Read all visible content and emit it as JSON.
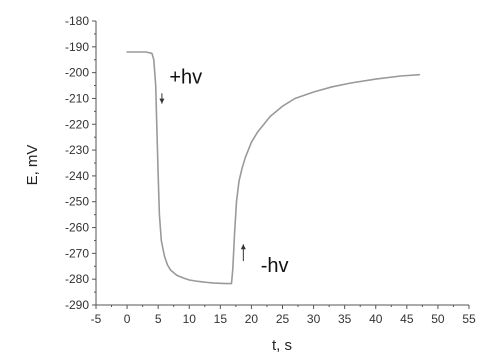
{
  "chart_data": {
    "type": "line",
    "xlabel": "t, s",
    "ylabel": "E, mV",
    "xlim": [
      -5,
      55
    ],
    "ylim": [
      -290,
      -180
    ],
    "xticks": [
      -5,
      0,
      5,
      10,
      15,
      20,
      25,
      30,
      35,
      40,
      45,
      50,
      55
    ],
    "yticks": [
      -180,
      -190,
      -200,
      -210,
      -220,
      -230,
      -240,
      -250,
      -260,
      -270,
      -280,
      -290
    ],
    "grid": false,
    "legend": "none",
    "line_color": "#9a9a9a",
    "series": [
      {
        "x": [
          0,
          1,
          2,
          3,
          4,
          4.3,
          4.6,
          4.8,
          5.0,
          5.2,
          5.5,
          6.0,
          6.5,
          7,
          8,
          9,
          10,
          11,
          12,
          13,
          14,
          15,
          16,
          16.8,
          17.0,
          17.3,
          17.6,
          18,
          18.5,
          19,
          20,
          21,
          22,
          23,
          24,
          25,
          27,
          30,
          33,
          36,
          40,
          44,
          47
        ],
        "y": [
          -192,
          -192,
          -192,
          -192,
          -192.5,
          -195,
          -205,
          -222,
          -240,
          -255,
          -265,
          -271,
          -274.5,
          -276.5,
          -278.5,
          -279.5,
          -280.3,
          -280.7,
          -281,
          -281.3,
          -281.5,
          -281.6,
          -281.7,
          -281.7,
          -276,
          -262,
          -250,
          -242,
          -237,
          -233,
          -227,
          -223,
          -220,
          -217,
          -215,
          -213,
          -210,
          -207.5,
          -205.5,
          -204,
          -202.5,
          -201.3,
          -200.8
        ]
      }
    ],
    "annotations": [
      {
        "text": "+hv",
        "x": 6.8,
        "y": -201.5,
        "arrow_direction": "down",
        "arrow_x": 5.6,
        "arrow_y_from": -208,
        "arrow_y_to": -212
      },
      {
        "text": "-hv",
        "x": 21.5,
        "y": -274.5,
        "arrow_direction": "up",
        "arrow_x": 18.7,
        "arrow_y_from": -273,
        "arrow_y_to": -266.5
      }
    ]
  }
}
